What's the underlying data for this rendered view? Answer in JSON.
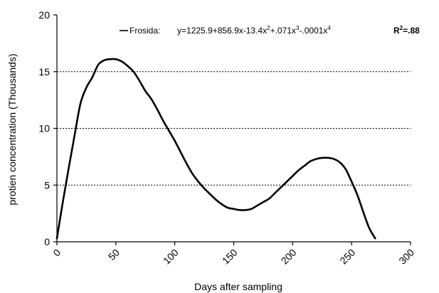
{
  "chart_data": {
    "type": "line",
    "xlabel": "Days after sampling",
    "ylabel": "protien concentration  (Thousands)",
    "xlim": [
      0,
      300
    ],
    "ylim": [
      0,
      20
    ],
    "x_ticks": [
      "0",
      "50",
      "100",
      "150",
      "200",
      "250",
      "300"
    ],
    "y_ticks": [
      "0",
      "5",
      "10",
      "15",
      "20"
    ],
    "grid": "horizontal dashed",
    "legend_position": "top",
    "legend": {
      "series_label": "Frosida:",
      "equation_prefix": "y=1225.9+856.9x-13.4x",
      "equation_exp1": "2",
      "equation_mid1": "+.071x",
      "equation_exp2": "3",
      "equation_mid2": "-.0001x",
      "equation_exp3": "4",
      "r2_prefix": "R",
      "r2_exp": "2",
      "r2_value": "=.88"
    },
    "series": [
      {
        "name": "Frosida",
        "x": [
          0,
          5,
          10,
          15,
          20,
          25,
          30,
          35,
          40,
          45,
          50,
          55,
          60,
          65,
          70,
          75,
          80,
          85,
          90,
          95,
          100,
          105,
          110,
          115,
          120,
          125,
          130,
          135,
          140,
          145,
          150,
          155,
          160,
          165,
          170,
          175,
          180,
          185,
          190,
          195,
          200,
          205,
          210,
          215,
          220,
          225,
          230,
          235,
          240,
          245,
          250,
          255,
          260,
          265,
          270
        ],
        "values": [
          0.3,
          3.5,
          6.5,
          9.4,
          12.2,
          13.6,
          14.5,
          15.6,
          16.0,
          16.1,
          16.1,
          15.9,
          15.5,
          15.0,
          14.2,
          13.3,
          12.6,
          11.7,
          10.7,
          9.8,
          8.9,
          7.9,
          6.9,
          6.0,
          5.3,
          4.7,
          4.2,
          3.7,
          3.3,
          3.0,
          2.9,
          2.8,
          2.8,
          2.9,
          3.2,
          3.5,
          3.8,
          4.3,
          4.8,
          5.3,
          5.8,
          6.3,
          6.7,
          7.1,
          7.3,
          7.4,
          7.4,
          7.3,
          7.0,
          6.4,
          5.3,
          4.1,
          2.6,
          1.2,
          0.3
        ]
      }
    ]
  }
}
